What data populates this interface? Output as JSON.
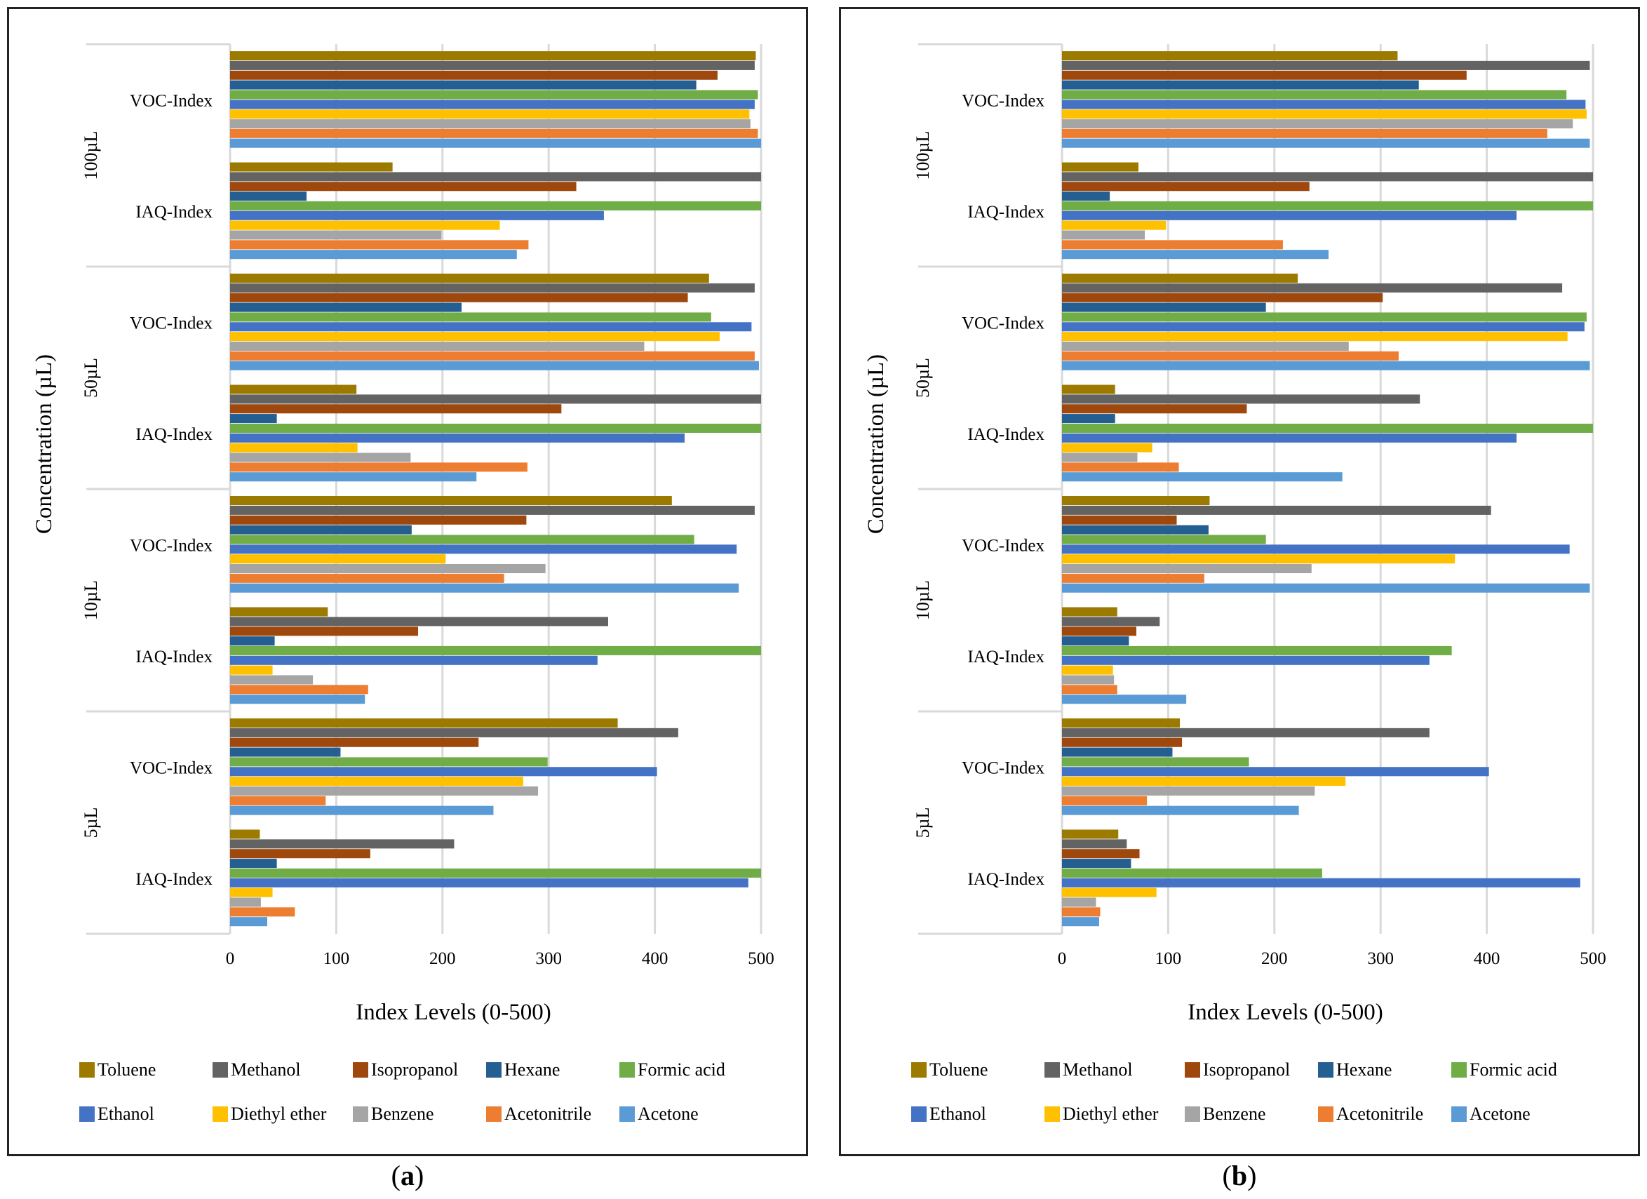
{
  "legend_colors": {
    "Toluene": "#9C7A00",
    "Methanol": "#636363",
    "Isopropanol": "#9E480E",
    "Hexane": "#255E91",
    "Formic acid": "#70AD47",
    "Ethanol": "#4472C4",
    "Diethyl ether": "#FFC000",
    "Benzene": "#A5A5A5",
    "Acetonitrile": "#ED7D31",
    "Acetone": "#5B9BD5"
  },
  "chart_data": [
    {
      "panel": "a",
      "type": "bar",
      "orientation": "horizontal",
      "panel_label": "a",
      "xlabel": "Index Levels (0-500)",
      "ylabel": "Concentration (µL)",
      "xlim": [
        0,
        500
      ],
      "xticks": [
        "0",
        "100",
        "200",
        "300",
        "400",
        "500"
      ],
      "series_names": [
        "Toluene",
        "Methanol",
        "Isopropanol",
        "Hexane",
        "Formic acid",
        "Ethanol",
        "Diethyl ether",
        "Benzene",
        "Acetonitrile",
        "Acetone"
      ],
      "groups": [
        {
          "concentration": "100µL",
          "categories": [
            {
              "label": "VOC-Index",
              "values": [
                495,
                494,
                459,
                439,
                497,
                494,
                489,
                490,
                497,
                500
              ]
            },
            {
              "label": "IAQ-Index",
              "values": [
                153,
                500,
                326,
                72,
                500,
                352,
                254,
                199,
                281,
                270
              ]
            }
          ]
        },
        {
          "concentration": "50µL",
          "categories": [
            {
              "label": "VOC-Index",
              "values": [
                451,
                494,
                431,
                218,
                453,
                491,
                461,
                390,
                494,
                498
              ]
            },
            {
              "label": "IAQ-Index",
              "values": [
                119,
                500,
                312,
                44,
                500,
                428,
                120,
                170,
                280,
                232
              ]
            }
          ]
        },
        {
          "concentration": "10µL",
          "categories": [
            {
              "label": "VOC-Index",
              "values": [
                416,
                494,
                279,
                171,
                437,
                477,
                203,
                297,
                258,
                479
              ]
            },
            {
              "label": "IAQ-Index",
              "values": [
                92,
                356,
                177,
                42,
                500,
                346,
                40,
                78,
                130,
                127
              ]
            }
          ]
        },
        {
          "concentration": "5µL",
          "categories": [
            {
              "label": "VOC-Index",
              "values": [
                365,
                422,
                234,
                104,
                299,
                402,
                276,
                290,
                90,
                248
              ]
            },
            {
              "label": "IAQ-Index",
              "values": [
                28,
                211,
                132,
                44,
                500,
                488,
                40,
                29,
                61,
                35
              ]
            }
          ]
        }
      ]
    },
    {
      "panel": "b",
      "type": "bar",
      "orientation": "horizontal",
      "panel_label": "b",
      "xlabel": "Index Levels (0-500)",
      "ylabel": "Concentration (µL)",
      "xlim": [
        0,
        500
      ],
      "xticks": [
        "0",
        "100",
        "200",
        "300",
        "400",
        "500"
      ],
      "series_names": [
        "Toluene",
        "Methanol",
        "Isopropanol",
        "Hexane",
        "Formic acid",
        "Ethanol",
        "Diethyl ether",
        "Benzene",
        "Acetonitrile",
        "Acetone"
      ],
      "groups": [
        {
          "concentration": "100µL",
          "categories": [
            {
              "label": "VOC-Index",
              "values": [
                316,
                497,
                381,
                336,
                475,
                493,
                494,
                481,
                457,
                497
              ]
            },
            {
              "label": "IAQ-Index",
              "values": [
                72,
                500,
                233,
                45,
                500,
                428,
                98,
                78,
                208,
                251
              ]
            }
          ]
        },
        {
          "concentration": "50µL",
          "categories": [
            {
              "label": "VOC-Index",
              "values": [
                222,
                471,
                302,
                192,
                494,
                492,
                476,
                270,
                317,
                497
              ]
            },
            {
              "label": "IAQ-Index",
              "values": [
                50,
                337,
                174,
                50,
                500,
                428,
                85,
                71,
                110,
                264
              ]
            }
          ]
        },
        {
          "concentration": "10µL",
          "categories": [
            {
              "label": "VOC-Index",
              "values": [
                139,
                404,
                108,
                138,
                192,
                478,
                370,
                235,
                134,
                497
              ]
            },
            {
              "label": "IAQ-Index",
              "values": [
                52,
                92,
                70,
                63,
                367,
                346,
                48,
                49,
                52,
                117
              ]
            }
          ]
        },
        {
          "concentration": "5µL",
          "categories": [
            {
              "label": "VOC-Index",
              "values": [
                111,
                346,
                113,
                104,
                176,
                402,
                267,
                238,
                80,
                223
              ]
            },
            {
              "label": "IAQ-Index",
              "values": [
                53,
                61,
                73,
                65,
                245,
                488,
                89,
                32,
                36,
                35
              ]
            }
          ]
        }
      ]
    }
  ]
}
